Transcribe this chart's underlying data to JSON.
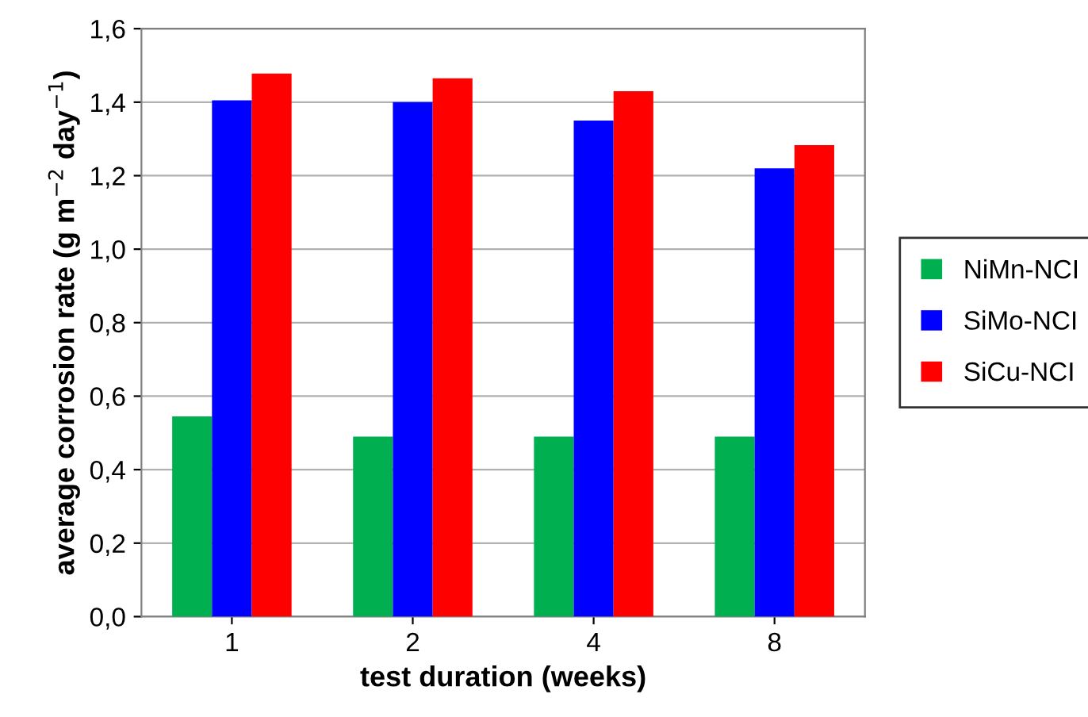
{
  "chart_data": {
    "type": "bar",
    "categories": [
      "1",
      "2",
      "4",
      "8"
    ],
    "series": [
      {
        "name": "NiMn-NCI",
        "color": "#00b050",
        "values": [
          0.545,
          0.49,
          0.49,
          0.49
        ]
      },
      {
        "name": "SiMo-NCI",
        "color": "#0000ff",
        "values": [
          1.405,
          1.4,
          1.35,
          1.22
        ]
      },
      {
        "name": "SiCu-NCI",
        "color": "#ff0000",
        "values": [
          1.478,
          1.465,
          1.43,
          1.283
        ]
      }
    ],
    "xlabel": "test duration (weeks)",
    "ylabel": "average corrosion rate (g m$^{−2}$ day$^{−1}$)",
    "ylim": [
      0,
      1.6
    ],
    "yticks": [
      {
        "value": 0,
        "label": "0,0"
      },
      {
        "value": 0.2,
        "label": "0,2"
      },
      {
        "value": 0.4,
        "label": "0,4"
      },
      {
        "value": 0.6,
        "label": "0,6"
      },
      {
        "value": 0.8,
        "label": "0,8"
      },
      {
        "value": 1.0,
        "label": "1,0"
      },
      {
        "value": 1.2,
        "label": "1,2"
      },
      {
        "value": 1.4,
        "label": "1,4"
      },
      {
        "value": 1.6,
        "label": "1,6"
      }
    ],
    "grid": "y",
    "legend": "right"
  }
}
